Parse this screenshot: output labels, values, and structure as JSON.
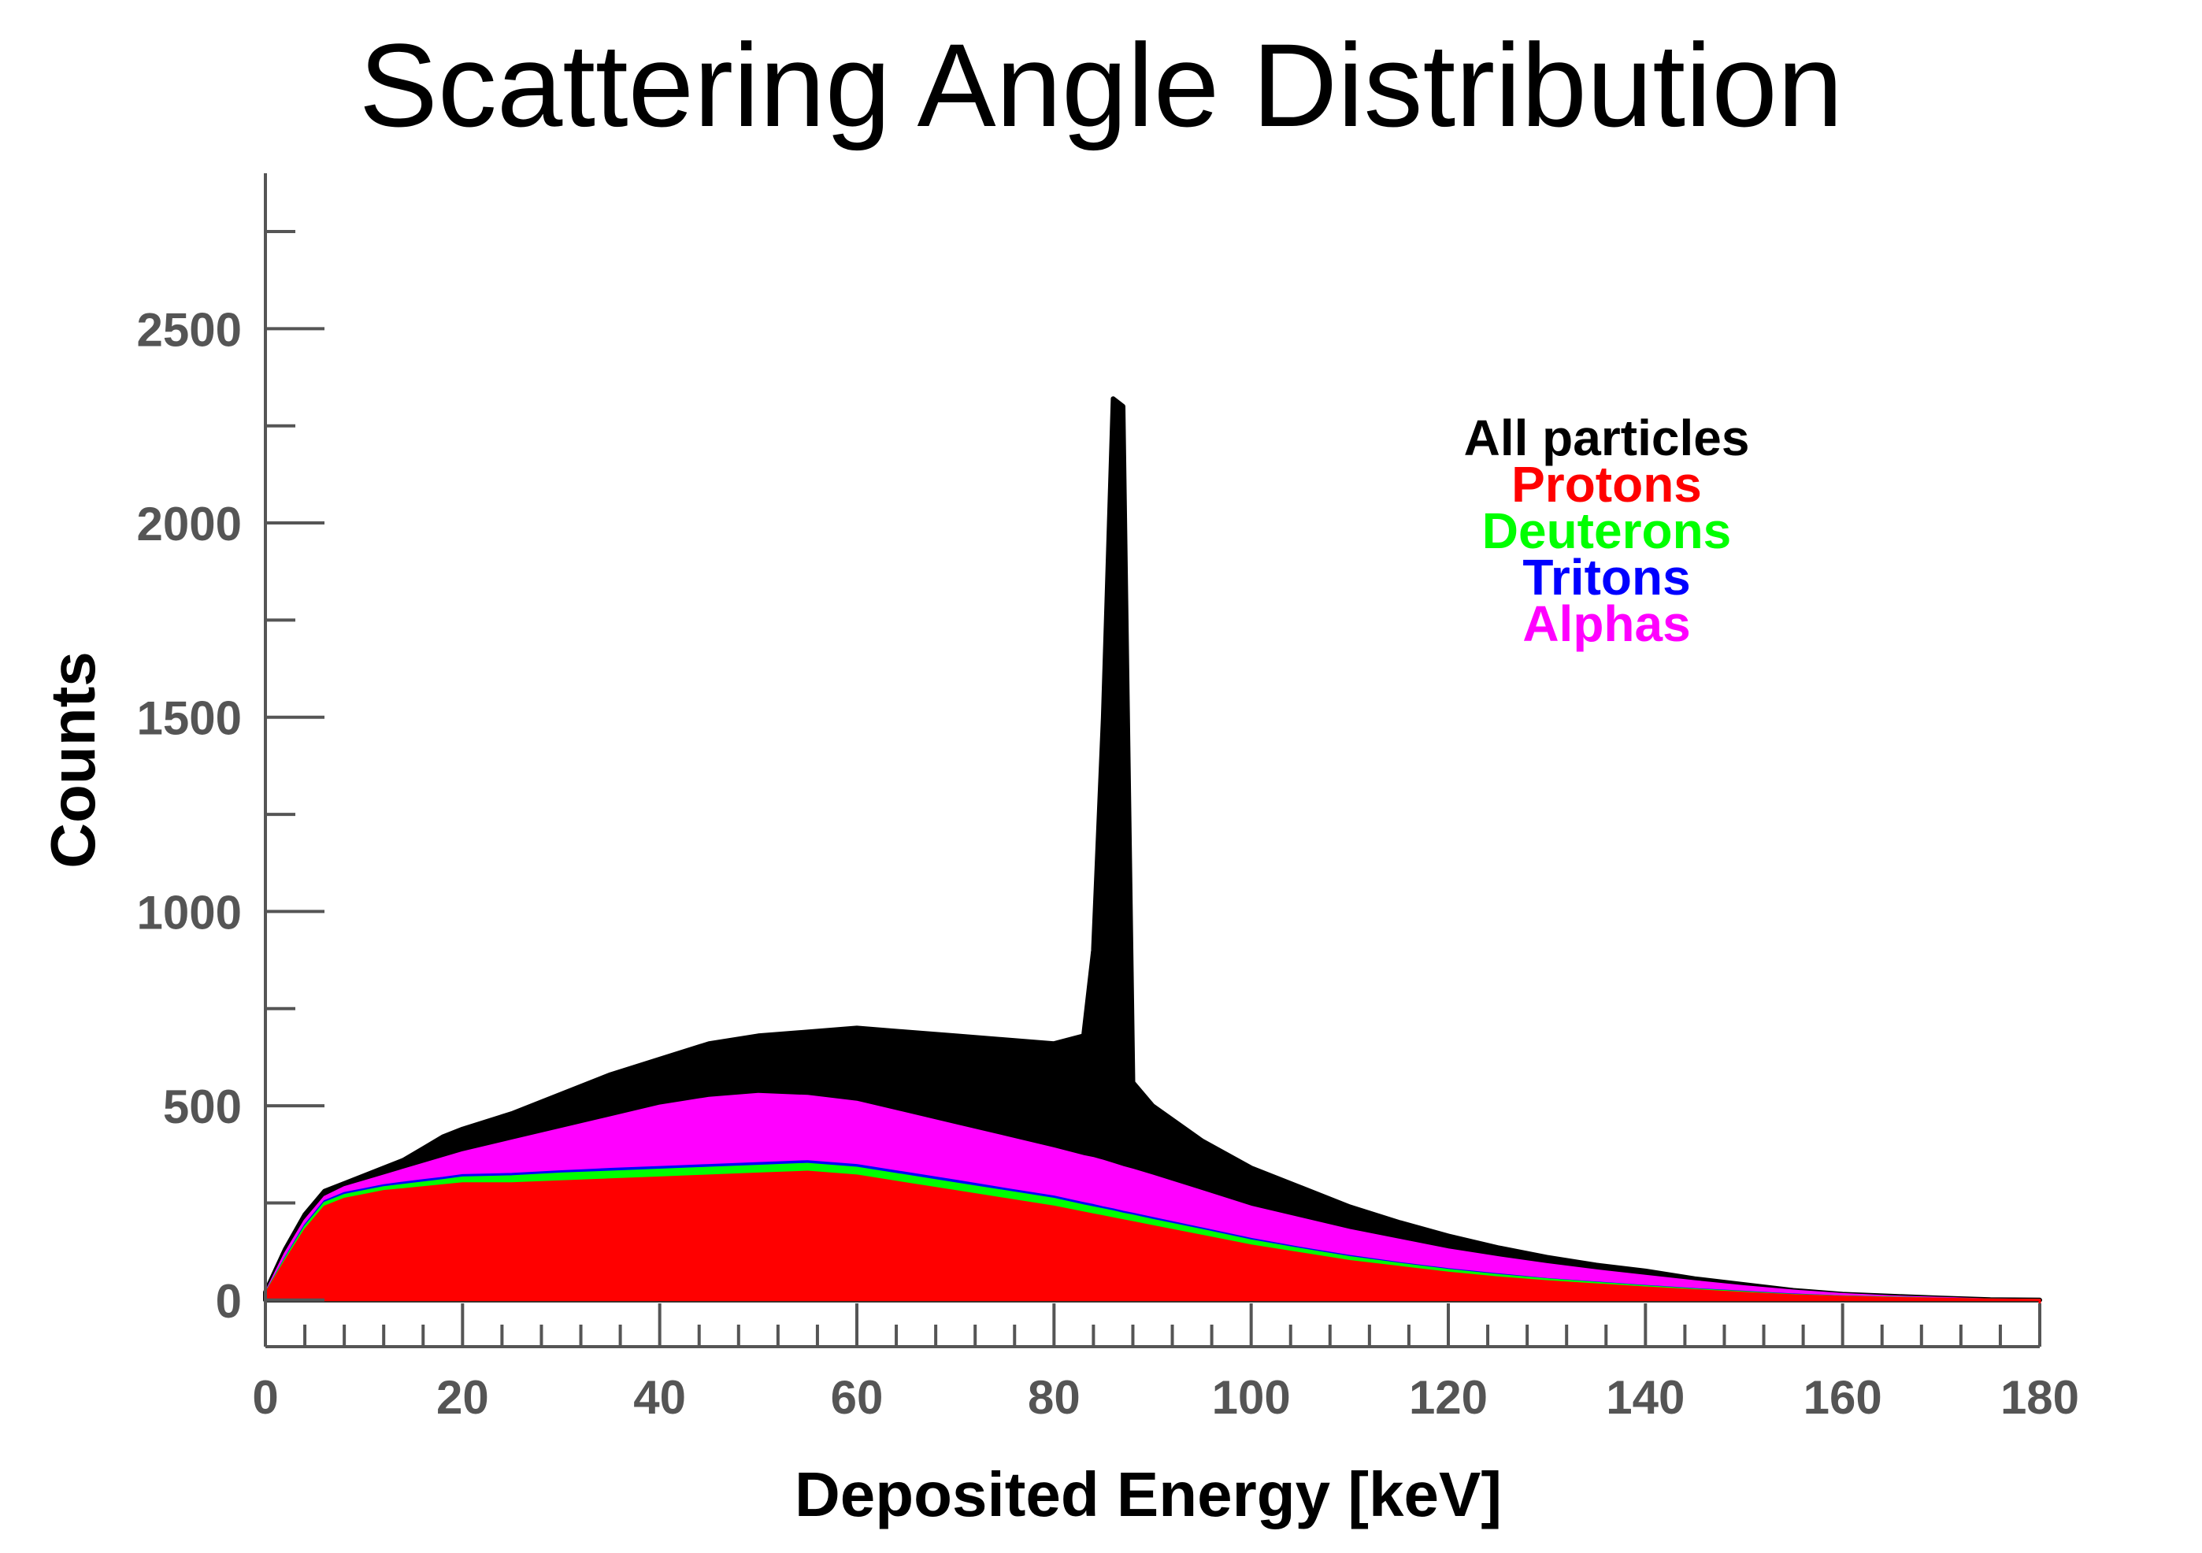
{
  "chart_data": {
    "type": "area",
    "title": "Scattering Angle Distribution",
    "xlabel": "Deposited Energy [keV]",
    "ylabel": "Counts",
    "xlim": [
      0,
      180
    ],
    "ylim": [
      -120,
      2900
    ],
    "x_ticks": [
      "0",
      "20",
      "40",
      "60",
      "80",
      "100",
      "120",
      "140",
      "160",
      "180"
    ],
    "y_ticks": [
      "0",
      "500",
      "1000",
      "1500",
      "2000",
      "2500"
    ],
    "grid": false,
    "legend_position": "top-right",
    "x": [
      0,
      2,
      4,
      6,
      8,
      10,
      12,
      14,
      16,
      18,
      20,
      25,
      30,
      35,
      40,
      45,
      50,
      55,
      60,
      65,
      70,
      75,
      80,
      83,
      84,
      85,
      86,
      87,
      88,
      90,
      95,
      100,
      105,
      110,
      115,
      120,
      125,
      130,
      135,
      140,
      145,
      150,
      155,
      160,
      165,
      170,
      175,
      180
    ],
    "series": [
      {
        "name": "All particles",
        "color": "#000000",
        "values": [
          20,
          130,
          220,
          280,
          300,
          320,
          340,
          360,
          390,
          420,
          440,
          480,
          530,
          580,
          620,
          660,
          680,
          690,
          700,
          690,
          680,
          670,
          660,
          680,
          900,
          1500,
          2320,
          2300,
          560,
          500,
          410,
          340,
          290,
          240,
          200,
          165,
          135,
          110,
          90,
          75,
          55,
          40,
          25,
          15,
          10,
          5,
          1,
          0
        ]
      },
      {
        "name": "Protons",
        "color": "#ff0000",
        "values": [
          15,
          100,
          180,
          240,
          260,
          270,
          280,
          285,
          290,
          295,
          300,
          300,
          305,
          310,
          315,
          320,
          325,
          330,
          320,
          300,
          280,
          260,
          240,
          225,
          220,
          215,
          210,
          205,
          200,
          190,
          165,
          140,
          120,
          100,
          85,
          70,
          58,
          48,
          40,
          32,
          25,
          18,
          12,
          8,
          5,
          3,
          1,
          0
        ]
      },
      {
        "name": "Deuterons",
        "color": "#00ff00",
        "values": [
          16,
          105,
          188,
          250,
          270,
          280,
          290,
          296,
          302,
          308,
          315,
          318,
          325,
          330,
          335,
          340,
          345,
          350,
          340,
          320,
          300,
          280,
          260,
          243,
          238,
          233,
          228,
          222,
          217,
          206,
          180,
          153,
          131,
          110,
          93,
          77,
          64,
          53,
          44,
          35,
          27,
          20,
          13,
          9,
          6,
          3,
          1,
          0
        ]
      },
      {
        "name": "Tritons",
        "color": "#0000ff",
        "values": [
          16,
          107,
          192,
          254,
          275,
          285,
          295,
          302,
          308,
          314,
          321,
          324,
          331,
          337,
          342,
          347,
          352,
          357,
          347,
          327,
          307,
          286,
          266,
          249,
          244,
          238,
          233,
          227,
          222,
          211,
          184,
          157,
          134,
          113,
          95,
          79,
          66,
          54,
          45,
          36,
          28,
          21,
          14,
          9,
          6,
          3,
          1,
          0
        ]
      },
      {
        "name": "Alphas",
        "color": "#ff00ff",
        "values": [
          18,
          120,
          205,
          265,
          290,
          305,
          320,
          335,
          350,
          365,
          380,
          410,
          440,
          470,
          500,
          520,
          530,
          525,
          510,
          480,
          450,
          420,
          390,
          370,
          365,
          358,
          350,
          342,
          335,
          320,
          280,
          240,
          210,
          180,
          155,
          130,
          110,
          92,
          76,
          62,
          48,
          35,
          24,
          15,
          9,
          5,
          1,
          0
        ]
      }
    ]
  }
}
